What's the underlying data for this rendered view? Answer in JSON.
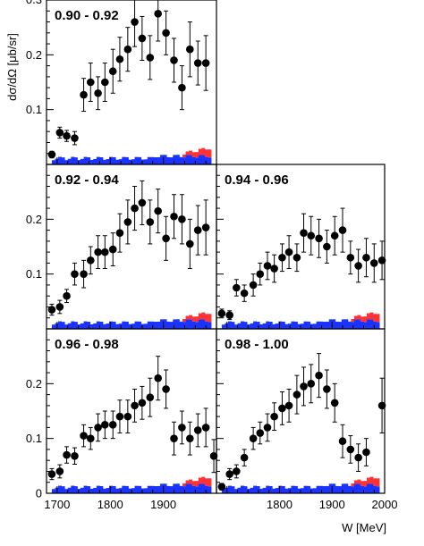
{
  "figure": {
    "ylabel": "dσ/dΩ [μb/sr]",
    "xlabel": "W [MeV]",
    "colors": {
      "curve1": "#33dddd",
      "curve2": "#dd22dd",
      "points": "#000000",
      "hist_blue": "#1a33ff",
      "hist_red": "#ff3333"
    }
  },
  "chart_data": [
    {
      "type": "scatter",
      "title": "0.90 - 0.92",
      "xlim": [
        1680,
        2000
      ],
      "ylim": [
        0,
        0.3
      ],
      "points": [
        {
          "x": 1690,
          "y": 0.018,
          "err": 0.006
        },
        {
          "x": 1705,
          "y": 0.058,
          "err": 0.01
        },
        {
          "x": 1718,
          "y": 0.052,
          "err": 0.01
        },
        {
          "x": 1733,
          "y": 0.048,
          "err": 0.012
        },
        {
          "x": 1750,
          "y": 0.127,
          "err": 0.03
        },
        {
          "x": 1763,
          "y": 0.15,
          "err": 0.035
        },
        {
          "x": 1777,
          "y": 0.13,
          "err": 0.03
        },
        {
          "x": 1790,
          "y": 0.15,
          "err": 0.035
        },
        {
          "x": 1805,
          "y": 0.17,
          "err": 0.04
        },
        {
          "x": 1818,
          "y": 0.192,
          "err": 0.04
        },
        {
          "x": 1833,
          "y": 0.21,
          "err": 0.04
        },
        {
          "x": 1846,
          "y": 0.26,
          "err": 0.045
        },
        {
          "x": 1860,
          "y": 0.23,
          "err": 0.04
        },
        {
          "x": 1875,
          "y": 0.195,
          "err": 0.04
        },
        {
          "x": 1890,
          "y": 0.275,
          "err": 0.05
        },
        {
          "x": 1905,
          "y": 0.24,
          "err": 0.04
        },
        {
          "x": 1920,
          "y": 0.19,
          "err": 0.04
        },
        {
          "x": 1935,
          "y": 0.14,
          "err": 0.04
        },
        {
          "x": 1950,
          "y": 0.21,
          "err": 0.05
        },
        {
          "x": 1965,
          "y": 0.185,
          "err": 0.04
        },
        {
          "x": 1980,
          "y": 0.185,
          "err": 0.05
        }
      ]
    },
    {
      "type": "scatter",
      "title": "0.92 - 0.94",
      "xlim": [
        1680,
        2000
      ],
      "ylim": [
        0,
        0.3
      ],
      "points": [
        {
          "x": 1690,
          "y": 0.035,
          "err": 0.01
        },
        {
          "x": 1705,
          "y": 0.04,
          "err": 0.012
        },
        {
          "x": 1718,
          "y": 0.06,
          "err": 0.012
        },
        {
          "x": 1733,
          "y": 0.1,
          "err": 0.02
        },
        {
          "x": 1750,
          "y": 0.1,
          "err": 0.025
        },
        {
          "x": 1763,
          "y": 0.125,
          "err": 0.025
        },
        {
          "x": 1777,
          "y": 0.14,
          "err": 0.03
        },
        {
          "x": 1790,
          "y": 0.14,
          "err": 0.03
        },
        {
          "x": 1805,
          "y": 0.145,
          "err": 0.03
        },
        {
          "x": 1818,
          "y": 0.175,
          "err": 0.035
        },
        {
          "x": 1833,
          "y": 0.195,
          "err": 0.04
        },
        {
          "x": 1846,
          "y": 0.22,
          "err": 0.04
        },
        {
          "x": 1860,
          "y": 0.23,
          "err": 0.04
        },
        {
          "x": 1875,
          "y": 0.195,
          "err": 0.04
        },
        {
          "x": 1890,
          "y": 0.215,
          "err": 0.04
        },
        {
          "x": 1905,
          "y": 0.165,
          "err": 0.04
        },
        {
          "x": 1920,
          "y": 0.205,
          "err": 0.04
        },
        {
          "x": 1935,
          "y": 0.2,
          "err": 0.045
        },
        {
          "x": 1950,
          "y": 0.155,
          "err": 0.045
        },
        {
          "x": 1965,
          "y": 0.18,
          "err": 0.045
        },
        {
          "x": 1980,
          "y": 0.185,
          "err": 0.05
        }
      ]
    },
    {
      "type": "scatter",
      "title": "0.94 - 0.96",
      "xlim": [
        1680,
        2000
      ],
      "ylim": [
        0,
        0.3
      ],
      "points": [
        {
          "x": 1690,
          "y": 0.028,
          "err": 0.008
        },
        {
          "x": 1705,
          "y": 0.025,
          "err": 0.008
        },
        {
          "x": 1718,
          "y": 0.075,
          "err": 0.015
        },
        {
          "x": 1733,
          "y": 0.065,
          "err": 0.015
        },
        {
          "x": 1750,
          "y": 0.08,
          "err": 0.02
        },
        {
          "x": 1763,
          "y": 0.1,
          "err": 0.02
        },
        {
          "x": 1777,
          "y": 0.115,
          "err": 0.025
        },
        {
          "x": 1790,
          "y": 0.11,
          "err": 0.025
        },
        {
          "x": 1805,
          "y": 0.13,
          "err": 0.025
        },
        {
          "x": 1818,
          "y": 0.14,
          "err": 0.03
        },
        {
          "x": 1833,
          "y": 0.13,
          "err": 0.025
        },
        {
          "x": 1846,
          "y": 0.175,
          "err": 0.035
        },
        {
          "x": 1860,
          "y": 0.17,
          "err": 0.035
        },
        {
          "x": 1875,
          "y": 0.165,
          "err": 0.035
        },
        {
          "x": 1890,
          "y": 0.15,
          "err": 0.03
        },
        {
          "x": 1905,
          "y": 0.17,
          "err": 0.035
        },
        {
          "x": 1920,
          "y": 0.18,
          "err": 0.04
        },
        {
          "x": 1935,
          "y": 0.13,
          "err": 0.03
        },
        {
          "x": 1950,
          "y": 0.115,
          "err": 0.03
        },
        {
          "x": 1965,
          "y": 0.13,
          "err": 0.035
        },
        {
          "x": 1980,
          "y": 0.12,
          "err": 0.035
        },
        {
          "x": 1995,
          "y": 0.125,
          "err": 0.035
        }
      ]
    },
    {
      "type": "scatter",
      "title": "0.96 - 0.98",
      "xlim": [
        1680,
        2000
      ],
      "ylim": [
        0,
        0.3
      ],
      "points": [
        {
          "x": 1690,
          "y": 0.035,
          "err": 0.01
        },
        {
          "x": 1705,
          "y": 0.04,
          "err": 0.012
        },
        {
          "x": 1718,
          "y": 0.07,
          "err": 0.015
        },
        {
          "x": 1733,
          "y": 0.068,
          "err": 0.015
        },
        {
          "x": 1750,
          "y": 0.105,
          "err": 0.02
        },
        {
          "x": 1763,
          "y": 0.1,
          "err": 0.02
        },
        {
          "x": 1777,
          "y": 0.12,
          "err": 0.025
        },
        {
          "x": 1790,
          "y": 0.125,
          "err": 0.025
        },
        {
          "x": 1805,
          "y": 0.125,
          "err": 0.025
        },
        {
          "x": 1818,
          "y": 0.14,
          "err": 0.03
        },
        {
          "x": 1833,
          "y": 0.14,
          "err": 0.03
        },
        {
          "x": 1846,
          "y": 0.16,
          "err": 0.03
        },
        {
          "x": 1860,
          "y": 0.165,
          "err": 0.03
        },
        {
          "x": 1875,
          "y": 0.175,
          "err": 0.035
        },
        {
          "x": 1890,
          "y": 0.21,
          "err": 0.04
        },
        {
          "x": 1905,
          "y": 0.19,
          "err": 0.035
        },
        {
          "x": 1920,
          "y": 0.1,
          "err": 0.03
        },
        {
          "x": 1935,
          "y": 0.12,
          "err": 0.03
        },
        {
          "x": 1950,
          "y": 0.1,
          "err": 0.03
        },
        {
          "x": 1965,
          "y": 0.115,
          "err": 0.03
        },
        {
          "x": 1980,
          "y": 0.12,
          "err": 0.035
        },
        {
          "x": 1995,
          "y": 0.068,
          "err": 0.03
        }
      ]
    },
    {
      "type": "scatter",
      "title": "0.98 - 1.00",
      "xlim": [
        1680,
        2000
      ],
      "ylim": [
        0,
        0.3
      ],
      "points": [
        {
          "x": 1690,
          "y": 0.012,
          "err": 0.006
        },
        {
          "x": 1705,
          "y": 0.035,
          "err": 0.01
        },
        {
          "x": 1718,
          "y": 0.04,
          "err": 0.012
        },
        {
          "x": 1733,
          "y": 0.065,
          "err": 0.015
        },
        {
          "x": 1750,
          "y": 0.1,
          "err": 0.02
        },
        {
          "x": 1763,
          "y": 0.11,
          "err": 0.02
        },
        {
          "x": 1777,
          "y": 0.12,
          "err": 0.025
        },
        {
          "x": 1790,
          "y": 0.14,
          "err": 0.025
        },
        {
          "x": 1805,
          "y": 0.155,
          "err": 0.03
        },
        {
          "x": 1818,
          "y": 0.16,
          "err": 0.03
        },
        {
          "x": 1833,
          "y": 0.18,
          "err": 0.035
        },
        {
          "x": 1846,
          "y": 0.195,
          "err": 0.035
        },
        {
          "x": 1860,
          "y": 0.2,
          "err": 0.035
        },
        {
          "x": 1875,
          "y": 0.215,
          "err": 0.04
        },
        {
          "x": 1890,
          "y": 0.19,
          "err": 0.035
        },
        {
          "x": 1905,
          "y": 0.165,
          "err": 0.035
        },
        {
          "x": 1920,
          "y": 0.095,
          "err": 0.03
        },
        {
          "x": 1935,
          "y": 0.08,
          "err": 0.025
        },
        {
          "x": 1950,
          "y": 0.065,
          "err": 0.025
        },
        {
          "x": 1965,
          "y": 0.075,
          "err": 0.025
        },
        {
          "x": 1995,
          "y": 0.16,
          "err": 0.05
        }
      ]
    }
  ]
}
